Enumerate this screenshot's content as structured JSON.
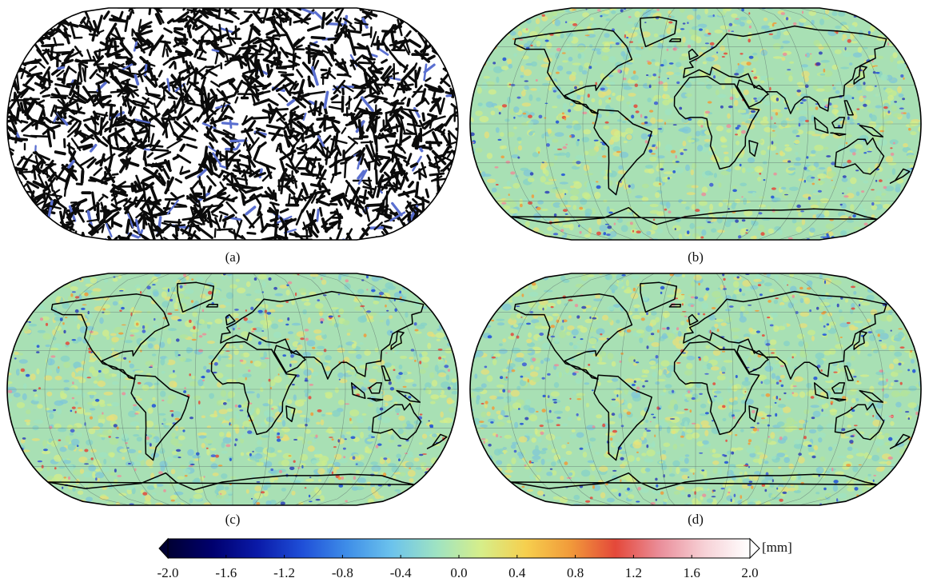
{
  "figure": {
    "panels": [
      {
        "label": "(a)",
        "style": "noise",
        "coastlines": false,
        "graticule": false
      },
      {
        "label": "(b)",
        "style": "field",
        "coastlines": true,
        "graticule": true
      },
      {
        "label": "(c)",
        "style": "field",
        "coastlines": true,
        "graticule": true
      },
      {
        "label": "(d)",
        "style": "field",
        "coastlines": true,
        "graticule": true
      }
    ],
    "projection": "Robinson (world)",
    "colorbar": {
      "unit": "[mm]",
      "min": -2.0,
      "max": 2.0,
      "ticks": [
        "-2.0",
        "-1.6",
        "-1.2",
        "-0.8",
        "-0.4",
        "0.0",
        "0.4",
        "0.8",
        "1.2",
        "1.6",
        "2.0"
      ],
      "colors": [
        "#000033",
        "#00006e",
        "#0a1aa8",
        "#1f4fd8",
        "#3f8ee8",
        "#6cc3ec",
        "#9fe3c2",
        "#d6ee8a",
        "#f6cf4e",
        "#f19a3a",
        "#e4483a",
        "#ea8f9b",
        "#f7d2d7",
        "#ffffff"
      ]
    }
  }
}
